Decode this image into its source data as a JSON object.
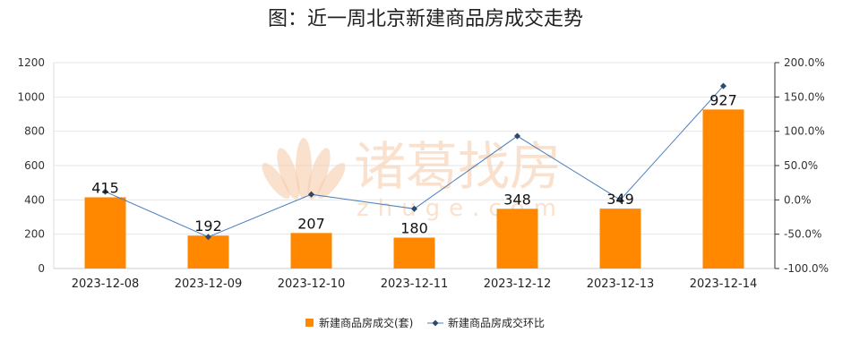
{
  "chart_data": {
    "type": "bar+line",
    "title": "图：近一周北京新建商品房成交走势",
    "categories": [
      "2023-12-08",
      "2023-12-09",
      "2023-12-10",
      "2023-12-11",
      "2023-12-12",
      "2023-12-13",
      "2023-12-14"
    ],
    "series": [
      {
        "name": "新建商品房成交(套)",
        "type": "bar",
        "axis": "left",
        "color": "#ff8800",
        "values": [
          415,
          192,
          207,
          180,
          348,
          349,
          927
        ]
      },
      {
        "name": "新建商品房成交环比",
        "type": "line",
        "axis": "right",
        "color": "#4a7ebb",
        "values": [
          12,
          -54,
          8,
          -13,
          93,
          0,
          166
        ]
      }
    ],
    "y_left": {
      "range": [
        0,
        1200
      ],
      "ticks": [
        "0",
        "200",
        "400",
        "600",
        "800",
        "1000",
        "1200"
      ]
    },
    "y_right": {
      "range": [
        -100,
        200
      ],
      "ticks": [
        "-100.0%",
        "-50.0%",
        "0.0%",
        "50.0%",
        "100.0%",
        "150.0%",
        "200.0%"
      ]
    },
    "grid": true,
    "legend_position": "bottom"
  },
  "watermark": {
    "brand": "诸葛找房",
    "domain": "zhuge.com"
  }
}
